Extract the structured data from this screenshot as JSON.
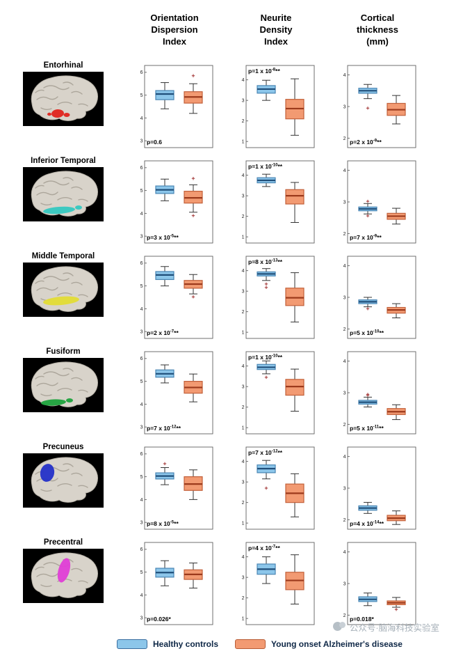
{
  "figure": {
    "column_headers": [
      "Orientation\nDispersion\nIndex",
      "Neurite\nDensity\nIndex",
      "Cortical\nthickness\n(mm)"
    ]
  },
  "legend": {
    "items": [
      {
        "label": "Healthy controls",
        "color": "#8CC6EA",
        "border": "#3B6E9F"
      },
      {
        "label": "Young onset Alzheimer's disease",
        "color": "#F29A72",
        "border": "#B85C35"
      }
    ]
  },
  "watermark": {
    "text": "公众号·脑海科技实验室",
    "icon": "logo-icon"
  },
  "chart_data": {
    "type": "boxplot-grid",
    "groups": [
      "Healthy controls",
      "Young onset Alzheimer's disease"
    ],
    "series_colors": {
      "hc_fill": "#8CC6EA",
      "hc_edge": "#4A86B4",
      "hc_median": "#1F4E79",
      "yoad_fill": "#F29A72",
      "yoad_edge": "#C2603A",
      "yoad_median": "#9C3A1C"
    },
    "columns": [
      {
        "key": "odi",
        "title": "Orientation Dispersion Index",
        "p_pos": "bottom",
        "ylim": [
          0.27,
          0.63
        ],
        "yticks": [
          {
            "v": 0.3,
            "t": "3"
          },
          {
            "v": 0.4,
            "t": "4"
          },
          {
            "v": 0.5,
            "t": "5"
          },
          {
            "v": 0.6,
            "t": "6"
          }
        ]
      },
      {
        "key": "ndi",
        "title": "Neurite Density Index",
        "p_pos": "top",
        "ylim": [
          0.07,
          0.47
        ],
        "yticks": [
          {
            "v": 0.1,
            "t": "1"
          },
          {
            "v": 0.2,
            "t": "2"
          },
          {
            "v": 0.3,
            "t": "3"
          },
          {
            "v": 0.4,
            "t": "4"
          }
        ]
      },
      {
        "key": "ct",
        "title": "Cortical thickness (mm)",
        "p_pos": "bottom",
        "ylim": [
          1.7,
          4.3
        ],
        "yticks": [
          {
            "v": 2,
            "t": "2"
          },
          {
            "v": 3,
            "t": "3"
          },
          {
            "v": 4,
            "t": "4"
          }
        ]
      }
    ],
    "rows": [
      {
        "region": "Entorhinal",
        "highlight_color": "#E0241C",
        "plots": {
          "odi": {
            "p_base": "p=0.6",
            "p_exp": "",
            "p_stars": "",
            "hc": {
              "whislo": 0.44,
              "q1": 0.48,
              "med": 0.505,
              "q3": 0.52,
              "whishi": 0.555,
              "outliers": []
            },
            "yoad": {
              "whislo": 0.42,
              "q1": 0.465,
              "med": 0.492,
              "q3": 0.515,
              "whishi": 0.55,
              "outliers": [
                0.585
              ]
            }
          },
          "ndi": {
            "p_base": "p=1 x 10",
            "p_exp": "-8",
            "p_stars": "**",
            "hc": {
              "whislo": 0.3,
              "q1": 0.335,
              "med": 0.355,
              "q3": 0.372,
              "whishi": 0.398,
              "outliers": []
            },
            "yoad": {
              "whislo": 0.13,
              "q1": 0.21,
              "med": 0.26,
              "q3": 0.305,
              "whishi": 0.405,
              "outliers": []
            }
          },
          "ct": {
            "p_base": "p=2 x 10",
            "p_exp": "-9",
            "p_stars": "**",
            "hc": {
              "whislo": 3.25,
              "q1": 3.42,
              "med": 3.5,
              "q3": 3.58,
              "whishi": 3.7,
              "outliers": [
                2.95
              ]
            },
            "yoad": {
              "whislo": 2.45,
              "q1": 2.72,
              "med": 2.9,
              "q3": 3.1,
              "whishi": 3.35,
              "outliers": []
            }
          }
        }
      },
      {
        "region": "Inferior Temporal",
        "highlight_color": "#35C8C0",
        "plots": {
          "odi": {
            "p_base": "p=3 x 10",
            "p_exp": "-5",
            "p_stars": "**",
            "hc": {
              "whislo": 0.455,
              "q1": 0.487,
              "med": 0.503,
              "q3": 0.52,
              "whishi": 0.55,
              "outliers": []
            },
            "yoad": {
              "whislo": 0.405,
              "q1": 0.445,
              "med": 0.468,
              "q3": 0.497,
              "whishi": 0.525,
              "outliers": [
                0.553,
                0.39
              ]
            }
          },
          "ndi": {
            "p_base": "p=1 x 10",
            "p_exp": "-10",
            "p_stars": "**",
            "hc": {
              "whislo": 0.345,
              "q1": 0.363,
              "med": 0.375,
              "q3": 0.388,
              "whishi": 0.405,
              "outliers": []
            },
            "yoad": {
              "whislo": 0.17,
              "q1": 0.26,
              "med": 0.3,
              "q3": 0.33,
              "whishi": 0.365,
              "outliers": []
            }
          },
          "ct": {
            "p_base": "p=7 x 10",
            "p_exp": "-9",
            "p_stars": "**",
            "hc": {
              "whislo": 2.62,
              "q1": 2.72,
              "med": 2.78,
              "q3": 2.84,
              "whishi": 2.95,
              "outliers": [
                3.02,
                2.56
              ]
            },
            "yoad": {
              "whislo": 2.3,
              "q1": 2.45,
              "med": 2.55,
              "q3": 2.64,
              "whishi": 2.8,
              "outliers": []
            }
          }
        }
      },
      {
        "region": "Middle Temporal",
        "highlight_color": "#E3DC35",
        "plots": {
          "odi": {
            "p_base": "p=2 x 10",
            "p_exp": "-7",
            "p_stars": "**",
            "hc": {
              "whislo": 0.5,
              "q1": 0.528,
              "med": 0.548,
              "q3": 0.563,
              "whishi": 0.585,
              "outliers": []
            },
            "yoad": {
              "whislo": 0.465,
              "q1": 0.49,
              "med": 0.508,
              "q3": 0.524,
              "whishi": 0.55,
              "outliers": [
                0.452
              ]
            }
          },
          "ndi": {
            "p_base": "p=8 x 10",
            "p_exp": "-13",
            "p_stars": "**",
            "hc": {
              "whislo": 0.352,
              "q1": 0.374,
              "med": 0.384,
              "q3": 0.394,
              "whishi": 0.41,
              "outliers": [
                0.335,
                0.318
              ]
            },
            "yoad": {
              "whislo": 0.15,
              "q1": 0.23,
              "med": 0.268,
              "q3": 0.315,
              "whishi": 0.39,
              "outliers": []
            }
          },
          "ct": {
            "p_base": "p=5 x 10",
            "p_exp": "-10",
            "p_stars": "**",
            "hc": {
              "whislo": 2.7,
              "q1": 2.8,
              "med": 2.86,
              "q3": 2.92,
              "whishi": 3.0,
              "outliers": [
                2.64
              ]
            },
            "yoad": {
              "whislo": 2.35,
              "q1": 2.5,
              "med": 2.6,
              "q3": 2.68,
              "whishi": 2.8,
              "outliers": []
            }
          }
        }
      },
      {
        "region": "Fusiform",
        "highlight_color": "#1EA23C",
        "plots": {
          "odi": {
            "p_base": "p=7 x 10",
            "p_exp": "-12",
            "p_stars": "**",
            "hc": {
              "whislo": 0.493,
              "q1": 0.518,
              "med": 0.533,
              "q3": 0.55,
              "whishi": 0.572,
              "outliers": []
            },
            "yoad": {
              "whislo": 0.41,
              "q1": 0.448,
              "med": 0.473,
              "q3": 0.5,
              "whishi": 0.532,
              "outliers": []
            }
          },
          "ndi": {
            "p_base": "p=1 x 10",
            "p_exp": "-10",
            "p_stars": "**",
            "hc": {
              "whislo": 0.362,
              "q1": 0.383,
              "med": 0.394,
              "q3": 0.408,
              "whishi": 0.425,
              "outliers": [
                0.345
              ]
            },
            "yoad": {
              "whislo": 0.18,
              "q1": 0.258,
              "med": 0.3,
              "q3": 0.335,
              "whishi": 0.385,
              "outliers": []
            }
          },
          "ct": {
            "p_base": "p=5 x 10",
            "p_exp": "-11",
            "p_stars": "**",
            "hc": {
              "whislo": 2.55,
              "q1": 2.64,
              "med": 2.7,
              "q3": 2.76,
              "whishi": 2.86,
              "outliers": [
                2.95,
                2.92
              ]
            },
            "yoad": {
              "whislo": 2.15,
              "q1": 2.31,
              "med": 2.4,
              "q3": 2.5,
              "whishi": 2.62,
              "outliers": []
            }
          }
        }
      },
      {
        "region": "Precuneus",
        "highlight_color": "#2430C8",
        "plots": {
          "odi": {
            "p_base": "p=8 x 10",
            "p_exp": "-5",
            "p_stars": "**",
            "hc": {
              "whislo": 0.465,
              "q1": 0.49,
              "med": 0.503,
              "q3": 0.517,
              "whishi": 0.54,
              "outliers": [
                0.557
              ]
            },
            "yoad": {
              "whislo": 0.4,
              "q1": 0.44,
              "med": 0.468,
              "q3": 0.5,
              "whishi": 0.53,
              "outliers": []
            }
          },
          "ndi": {
            "p_base": "p=7 x 10",
            "p_exp": "-12",
            "p_stars": "**",
            "hc": {
              "whislo": 0.315,
              "q1": 0.345,
              "med": 0.365,
              "q3": 0.383,
              "whishi": 0.405,
              "outliers": [
                0.27
              ]
            },
            "yoad": {
              "whislo": 0.13,
              "q1": 0.2,
              "med": 0.245,
              "q3": 0.29,
              "whishi": 0.34,
              "outliers": []
            }
          },
          "ct": {
            "p_base": "p=4 x 10",
            "p_exp": "-14",
            "p_stars": "**",
            "hc": {
              "whislo": 2.2,
              "q1": 2.3,
              "med": 2.37,
              "q3": 2.44,
              "whishi": 2.55,
              "outliers": []
            },
            "yoad": {
              "whislo": 1.85,
              "q1": 1.97,
              "med": 2.05,
              "q3": 2.14,
              "whishi": 2.28,
              "outliers": []
            }
          }
        }
      },
      {
        "region": "Precentral",
        "highlight_color": "#E03ED6",
        "plots": {
          "odi": {
            "p_base": "p=0.026",
            "p_exp": "",
            "p_stars": "*",
            "hc": {
              "whislo": 0.44,
              "q1": 0.478,
              "med": 0.498,
              "q3": 0.517,
              "whishi": 0.55,
              "outliers": []
            },
            "yoad": {
              "whislo": 0.43,
              "q1": 0.468,
              "med": 0.49,
              "q3": 0.51,
              "whishi": 0.54,
              "outliers": []
            }
          },
          "ndi": {
            "p_base": "p=4 x 10",
            "p_exp": "-7",
            "p_stars": "**",
            "hc": {
              "whislo": 0.27,
              "q1": 0.315,
              "med": 0.34,
              "q3": 0.365,
              "whishi": 0.4,
              "outliers": []
            },
            "yoad": {
              "whislo": 0.17,
              "q1": 0.24,
              "med": 0.285,
              "q3": 0.325,
              "whishi": 0.41,
              "outliers": []
            }
          },
          "ct": {
            "p_base": "p=0.018",
            "p_exp": "",
            "p_stars": "*",
            "hc": {
              "whislo": 2.3,
              "q1": 2.43,
              "med": 2.5,
              "q3": 2.58,
              "whishi": 2.7,
              "outliers": []
            },
            "yoad": {
              "whislo": 2.25,
              "q1": 2.33,
              "med": 2.39,
              "q3": 2.45,
              "whishi": 2.56,
              "outliers": [
                2.18
              ]
            }
          }
        }
      }
    ]
  }
}
